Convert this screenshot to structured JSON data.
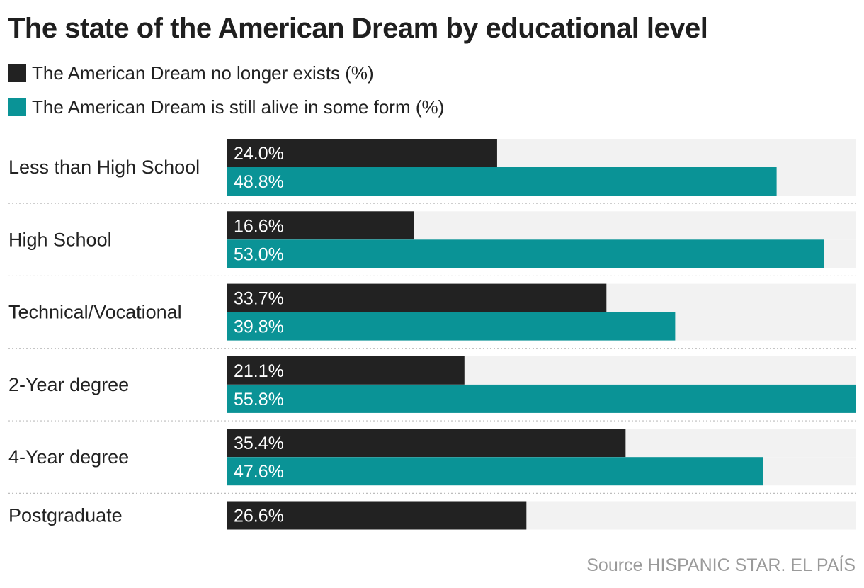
{
  "chart_data": {
    "type": "bar",
    "orientation": "horizontal",
    "title": "The state of the American Dream by educational level",
    "xlim": [
      0,
      55.8
    ],
    "grid": false,
    "legend": "top-left",
    "categories": [
      "Less than High School",
      "High School",
      "Technical/Vocational",
      "2-Year degree",
      "4-Year degree",
      "Postgraduate"
    ],
    "series": [
      {
        "name": "The American Dream no longer exists (%)",
        "color": "#222222",
        "values": [
          24.0,
          16.6,
          33.7,
          21.1,
          35.4,
          26.6
        ],
        "labels": [
          "24.0%",
          "16.6%",
          "33.7%",
          "21.1%",
          "35.4%",
          "26.6%"
        ]
      },
      {
        "name": "The American Dream is still alive in some form (%)",
        "color": "#0a9396",
        "values": [
          48.8,
          53.0,
          39.8,
          55.8,
          47.6,
          null
        ],
        "labels": [
          "48.8%",
          "53.0%",
          "39.8%",
          "55.8%",
          "47.6%",
          null
        ]
      }
    ],
    "track_color": "#f2f2f2",
    "source": "Source HISPANIC STAR. EL PAÍS"
  }
}
